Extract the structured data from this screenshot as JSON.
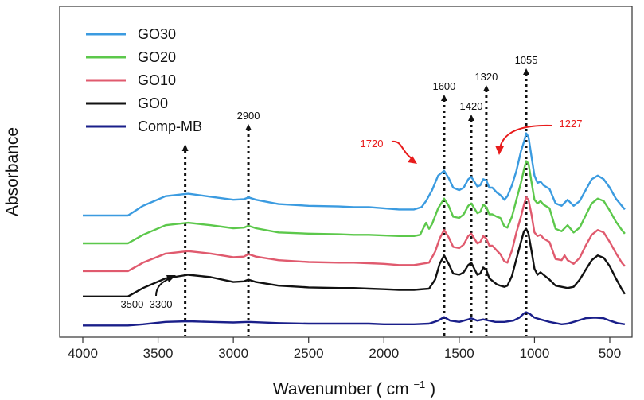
{
  "chart_data": {
    "type": "line",
    "xlabel": "Wavenumber ( cm",
    "xlabel_sup": "−1",
    "xlabel_close": ")",
    "ylabel": "Absorbance",
    "x_reversed": true,
    "xlim": [
      4000,
      400
    ],
    "x_ticks": [
      4000,
      3500,
      3000,
      2500,
      2000,
      1500,
      1000,
      500
    ],
    "y_ticks_shown": false,
    "grid": false,
    "legend_position": "top-left",
    "series": [
      {
        "name": "GO30",
        "color": "#3b9be0",
        "points": [
          [
            4000,
            7.5
          ],
          [
            3700,
            7.5
          ],
          [
            3600,
            8.3
          ],
          [
            3450,
            9.1
          ],
          [
            3300,
            9.3
          ],
          [
            3150,
            9.05
          ],
          [
            3000,
            8.8
          ],
          [
            2930,
            8.85
          ],
          [
            2900,
            9.0
          ],
          [
            2850,
            8.8
          ],
          [
            2700,
            8.45
          ],
          [
            2500,
            8.3
          ],
          [
            2300,
            8.25
          ],
          [
            2200,
            8.2
          ],
          [
            2100,
            8.2
          ],
          [
            2000,
            8.1
          ],
          [
            1900,
            8.0
          ],
          [
            1800,
            8.0
          ],
          [
            1750,
            8.2
          ],
          [
            1720,
            8.7
          ],
          [
            1680,
            9.6
          ],
          [
            1640,
            10.8
          ],
          [
            1600,
            11.2
          ],
          [
            1570,
            10.6
          ],
          [
            1540,
            9.8
          ],
          [
            1500,
            9.6
          ],
          [
            1470,
            9.8
          ],
          [
            1440,
            10.5
          ],
          [
            1420,
            10.7
          ],
          [
            1400,
            10.3
          ],
          [
            1380,
            9.9
          ],
          [
            1360,
            10.0
          ],
          [
            1340,
            10.5
          ],
          [
            1320,
            10.4
          ],
          [
            1300,
            9.8
          ],
          [
            1280,
            9.8
          ],
          [
            1250,
            9.4
          ],
          [
            1227,
            9.2
          ],
          [
            1200,
            8.8
          ],
          [
            1180,
            9.1
          ],
          [
            1150,
            10.0
          ],
          [
            1120,
            11.2
          ],
          [
            1090,
            12.8
          ],
          [
            1070,
            13.6
          ],
          [
            1055,
            14.3
          ],
          [
            1040,
            14.0
          ],
          [
            1020,
            12.4
          ],
          [
            1000,
            10.8
          ],
          [
            980,
            10.2
          ],
          [
            960,
            10.3
          ],
          [
            940,
            10.0
          ],
          [
            900,
            9.7
          ],
          [
            860,
            8.5
          ],
          [
            820,
            8.3
          ],
          [
            780,
            8.8
          ],
          [
            740,
            8.3
          ],
          [
            700,
            8.7
          ],
          [
            660,
            9.6
          ],
          [
            620,
            10.5
          ],
          [
            580,
            10.8
          ],
          [
            540,
            10.5
          ],
          [
            500,
            9.8
          ],
          [
            460,
            8.9
          ],
          [
            420,
            8.3
          ],
          [
            400,
            8.0
          ]
        ]
      },
      {
        "name": "GO20",
        "color": "#5cc84b",
        "points": [
          [
            4000,
            5.2
          ],
          [
            3700,
            5.2
          ],
          [
            3600,
            5.9
          ],
          [
            3450,
            6.7
          ],
          [
            3300,
            6.9
          ],
          [
            3150,
            6.7
          ],
          [
            3000,
            6.45
          ],
          [
            2930,
            6.5
          ],
          [
            2900,
            6.65
          ],
          [
            2850,
            6.45
          ],
          [
            2700,
            6.1
          ],
          [
            2500,
            6.0
          ],
          [
            2300,
            5.95
          ],
          [
            2200,
            5.9
          ],
          [
            2100,
            5.9
          ],
          [
            2000,
            5.85
          ],
          [
            1900,
            5.8
          ],
          [
            1800,
            5.8
          ],
          [
            1760,
            5.9
          ],
          [
            1740,
            6.4
          ],
          [
            1720,
            6.9
          ],
          [
            1700,
            6.4
          ],
          [
            1680,
            6.8
          ],
          [
            1640,
            8.1
          ],
          [
            1600,
            8.9
          ],
          [
            1570,
            8.3
          ],
          [
            1540,
            7.4
          ],
          [
            1500,
            7.3
          ],
          [
            1470,
            7.6
          ],
          [
            1440,
            8.3
          ],
          [
            1420,
            8.5
          ],
          [
            1400,
            8.1
          ],
          [
            1380,
            7.7
          ],
          [
            1360,
            7.8
          ],
          [
            1340,
            8.4
          ],
          [
            1320,
            8.2
          ],
          [
            1300,
            7.6
          ],
          [
            1280,
            7.6
          ],
          [
            1250,
            7.4
          ],
          [
            1227,
            7.3
          ],
          [
            1200,
            6.6
          ],
          [
            1180,
            6.5
          ],
          [
            1150,
            7.4
          ],
          [
            1120,
            8.8
          ],
          [
            1090,
            10.2
          ],
          [
            1070,
            11.3
          ],
          [
            1055,
            12.0
          ],
          [
            1040,
            11.8
          ],
          [
            1020,
            10.3
          ],
          [
            1000,
            8.8
          ],
          [
            980,
            8.5
          ],
          [
            960,
            8.7
          ],
          [
            940,
            8.4
          ],
          [
            900,
            8.1
          ],
          [
            860,
            6.4
          ],
          [
            820,
            6.2
          ],
          [
            780,
            6.7
          ],
          [
            740,
            6.1
          ],
          [
            700,
            6.5
          ],
          [
            660,
            7.5
          ],
          [
            620,
            8.5
          ],
          [
            580,
            8.9
          ],
          [
            540,
            8.7
          ],
          [
            500,
            7.9
          ],
          [
            460,
            7.0
          ],
          [
            420,
            6.3
          ],
          [
            400,
            6.0
          ]
        ]
      },
      {
        "name": "GO10",
        "color": "#e05a6e",
        "points": [
          [
            4000,
            2.9
          ],
          [
            3700,
            2.9
          ],
          [
            3600,
            3.6
          ],
          [
            3450,
            4.35
          ],
          [
            3300,
            4.55
          ],
          [
            3150,
            4.35
          ],
          [
            3000,
            4.05
          ],
          [
            2930,
            4.1
          ],
          [
            2900,
            4.3
          ],
          [
            2850,
            4.1
          ],
          [
            2700,
            3.8
          ],
          [
            2500,
            3.65
          ],
          [
            2300,
            3.6
          ],
          [
            2200,
            3.6
          ],
          [
            2100,
            3.55
          ],
          [
            2000,
            3.5
          ],
          [
            1900,
            3.4
          ],
          [
            1800,
            3.4
          ],
          [
            1700,
            3.6
          ],
          [
            1660,
            4.5
          ],
          [
            1630,
            5.6
          ],
          [
            1600,
            6.3
          ],
          [
            1570,
            5.7
          ],
          [
            1540,
            4.9
          ],
          [
            1500,
            4.8
          ],
          [
            1470,
            5.1
          ],
          [
            1440,
            5.8
          ],
          [
            1420,
            6.0
          ],
          [
            1400,
            5.6
          ],
          [
            1380,
            5.2
          ],
          [
            1360,
            5.3
          ],
          [
            1340,
            5.8
          ],
          [
            1320,
            5.6
          ],
          [
            1300,
            5.0
          ],
          [
            1280,
            5.0
          ],
          [
            1250,
            4.6
          ],
          [
            1227,
            4.3
          ],
          [
            1200,
            3.7
          ],
          [
            1180,
            3.6
          ],
          [
            1150,
            4.6
          ],
          [
            1120,
            6.1
          ],
          [
            1090,
            7.4
          ],
          [
            1070,
            8.4
          ],
          [
            1055,
            9.0
          ],
          [
            1040,
            8.8
          ],
          [
            1020,
            7.6
          ],
          [
            1000,
            6.1
          ],
          [
            980,
            5.8
          ],
          [
            960,
            5.9
          ],
          [
            940,
            5.6
          ],
          [
            900,
            5.3
          ],
          [
            860,
            3.9
          ],
          [
            820,
            3.8
          ],
          [
            800,
            4.2
          ],
          [
            780,
            3.8
          ],
          [
            740,
            3.5
          ],
          [
            700,
            4.0
          ],
          [
            660,
            5.0
          ],
          [
            620,
            5.9
          ],
          [
            580,
            6.3
          ],
          [
            540,
            6.1
          ],
          [
            500,
            5.3
          ],
          [
            460,
            4.4
          ],
          [
            420,
            3.6
          ],
          [
            400,
            3.3
          ]
        ]
      },
      {
        "name": "GO0",
        "color": "#111111",
        "points": [
          [
            4000,
            0.8
          ],
          [
            3700,
            0.8
          ],
          [
            3600,
            1.5
          ],
          [
            3450,
            2.3
          ],
          [
            3300,
            2.6
          ],
          [
            3150,
            2.4
          ],
          [
            3000,
            2.0
          ],
          [
            2930,
            2.05
          ],
          [
            2900,
            2.2
          ],
          [
            2850,
            2.0
          ],
          [
            2700,
            1.7
          ],
          [
            2500,
            1.55
          ],
          [
            2300,
            1.5
          ],
          [
            2200,
            1.5
          ],
          [
            2100,
            1.45
          ],
          [
            2000,
            1.4
          ],
          [
            1900,
            1.35
          ],
          [
            1800,
            1.35
          ],
          [
            1700,
            1.45
          ],
          [
            1660,
            2.2
          ],
          [
            1630,
            3.5
          ],
          [
            1600,
            4.2
          ],
          [
            1570,
            3.5
          ],
          [
            1540,
            2.7
          ],
          [
            1500,
            2.6
          ],
          [
            1470,
            2.8
          ],
          [
            1440,
            3.4
          ],
          [
            1420,
            3.6
          ],
          [
            1400,
            3.1
          ],
          [
            1380,
            2.6
          ],
          [
            1360,
            2.7
          ],
          [
            1340,
            3.2
          ],
          [
            1320,
            3.0
          ],
          [
            1300,
            2.3
          ],
          [
            1280,
            2.1
          ],
          [
            1250,
            1.8
          ],
          [
            1227,
            1.7
          ],
          [
            1200,
            1.6
          ],
          [
            1180,
            1.7
          ],
          [
            1150,
            2.5
          ],
          [
            1120,
            3.9
          ],
          [
            1090,
            5.3
          ],
          [
            1070,
            6.2
          ],
          [
            1055,
            6.4
          ],
          [
            1040,
            6.0
          ],
          [
            1020,
            4.6
          ],
          [
            1000,
            3.1
          ],
          [
            980,
            2.6
          ],
          [
            960,
            2.8
          ],
          [
            940,
            2.6
          ],
          [
            900,
            2.2
          ],
          [
            860,
            1.7
          ],
          [
            820,
            1.6
          ],
          [
            780,
            1.5
          ],
          [
            740,
            1.6
          ],
          [
            700,
            2.2
          ],
          [
            660,
            3.0
          ],
          [
            620,
            3.8
          ],
          [
            580,
            4.2
          ],
          [
            540,
            4.0
          ],
          [
            500,
            3.3
          ],
          [
            460,
            2.3
          ],
          [
            420,
            1.4
          ],
          [
            400,
            1.0
          ]
        ]
      },
      {
        "name": "Comp-MB",
        "color": "#1a1f8a",
        "points": [
          [
            4000,
            -1.6
          ],
          [
            3700,
            -1.6
          ],
          [
            3600,
            -1.5
          ],
          [
            3450,
            -1.3
          ],
          [
            3300,
            -1.25
          ],
          [
            3150,
            -1.3
          ],
          [
            3000,
            -1.35
          ],
          [
            2900,
            -1.3
          ],
          [
            2700,
            -1.4
          ],
          [
            2500,
            -1.45
          ],
          [
            2300,
            -1.45
          ],
          [
            2100,
            -1.45
          ],
          [
            2000,
            -1.5
          ],
          [
            1800,
            -1.5
          ],
          [
            1700,
            -1.45
          ],
          [
            1640,
            -1.2
          ],
          [
            1600,
            -0.9
          ],
          [
            1560,
            -1.2
          ],
          [
            1500,
            -1.3
          ],
          [
            1440,
            -1.1
          ],
          [
            1420,
            -1.0
          ],
          [
            1380,
            -1.2
          ],
          [
            1340,
            -1.1
          ],
          [
            1320,
            -1.15
          ],
          [
            1260,
            -1.3
          ],
          [
            1200,
            -1.3
          ],
          [
            1140,
            -1.2
          ],
          [
            1100,
            -0.95
          ],
          [
            1070,
            -0.6
          ],
          [
            1055,
            -0.5
          ],
          [
            1030,
            -0.65
          ],
          [
            1000,
            -0.95
          ],
          [
            960,
            -1.1
          ],
          [
            900,
            -1.3
          ],
          [
            860,
            -1.4
          ],
          [
            820,
            -1.5
          ],
          [
            780,
            -1.45
          ],
          [
            740,
            -1.3
          ],
          [
            700,
            -1.15
          ],
          [
            660,
            -1.0
          ],
          [
            600,
            -0.95
          ],
          [
            540,
            -1.0
          ],
          [
            500,
            -1.2
          ],
          [
            450,
            -1.4
          ],
          [
            400,
            -1.5
          ]
        ]
      }
    ],
    "peak_markers": [
      {
        "label": "2900",
        "x": 2900,
        "color": "#111111"
      },
      {
        "label": "1600",
        "x": 1600,
        "color": "#111111"
      },
      {
        "label": "1420",
        "x": 1420,
        "color": "#111111"
      },
      {
        "label": "1320",
        "x": 1320,
        "color": "#111111"
      },
      {
        "label": "1055",
        "x": 1055,
        "color": "#111111"
      }
    ],
    "extra_markers": [
      {
        "label": "3500–3300",
        "x": 3320,
        "color": "#111111"
      }
    ],
    "annotations": [
      {
        "label": "1720",
        "color": "#e81c1c"
      },
      {
        "label": "1227",
        "color": "#e81c1c"
      },
      {
        "label": "3500–3300",
        "color": "#111111"
      }
    ]
  }
}
